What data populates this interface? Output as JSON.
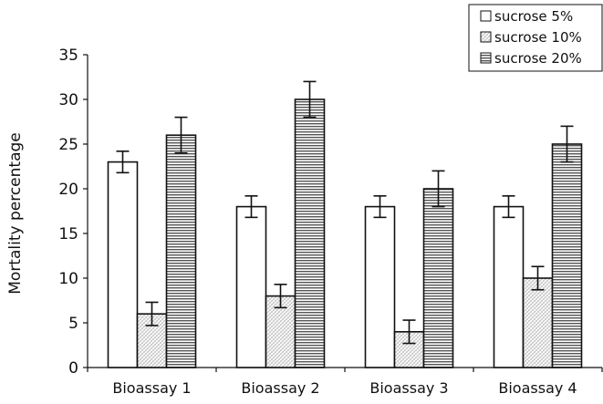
{
  "chart_data": {
    "type": "bar",
    "title": "",
    "xlabel": "",
    "ylabel": "Mortality percentage",
    "ylim": [
      0,
      35
    ],
    "yticks": [
      0,
      5,
      10,
      15,
      20,
      25,
      30,
      35
    ],
    "grid": false,
    "legend_position": "top-right",
    "categories": [
      "Bioassay 1",
      "Bioassay 2",
      "Bioassay 3",
      "Bioassay 4"
    ],
    "series": [
      {
        "name": "sucrose 5%",
        "fill": "white",
        "values": [
          23,
          18,
          18,
          18
        ],
        "errors": [
          1.2,
          1.2,
          1.2,
          1.2
        ]
      },
      {
        "name": "sucrose 10%",
        "fill": "crosshatch",
        "values": [
          6,
          8,
          4,
          10
        ],
        "errors": [
          1.3,
          1.3,
          1.3,
          1.3
        ]
      },
      {
        "name": "sucrose 20%",
        "fill": "horizontal",
        "values": [
          26,
          30,
          20,
          25
        ],
        "errors": [
          2,
          2,
          2,
          2
        ]
      }
    ],
    "colors": {
      "stroke": "#111111",
      "background": "#ffffff"
    }
  }
}
